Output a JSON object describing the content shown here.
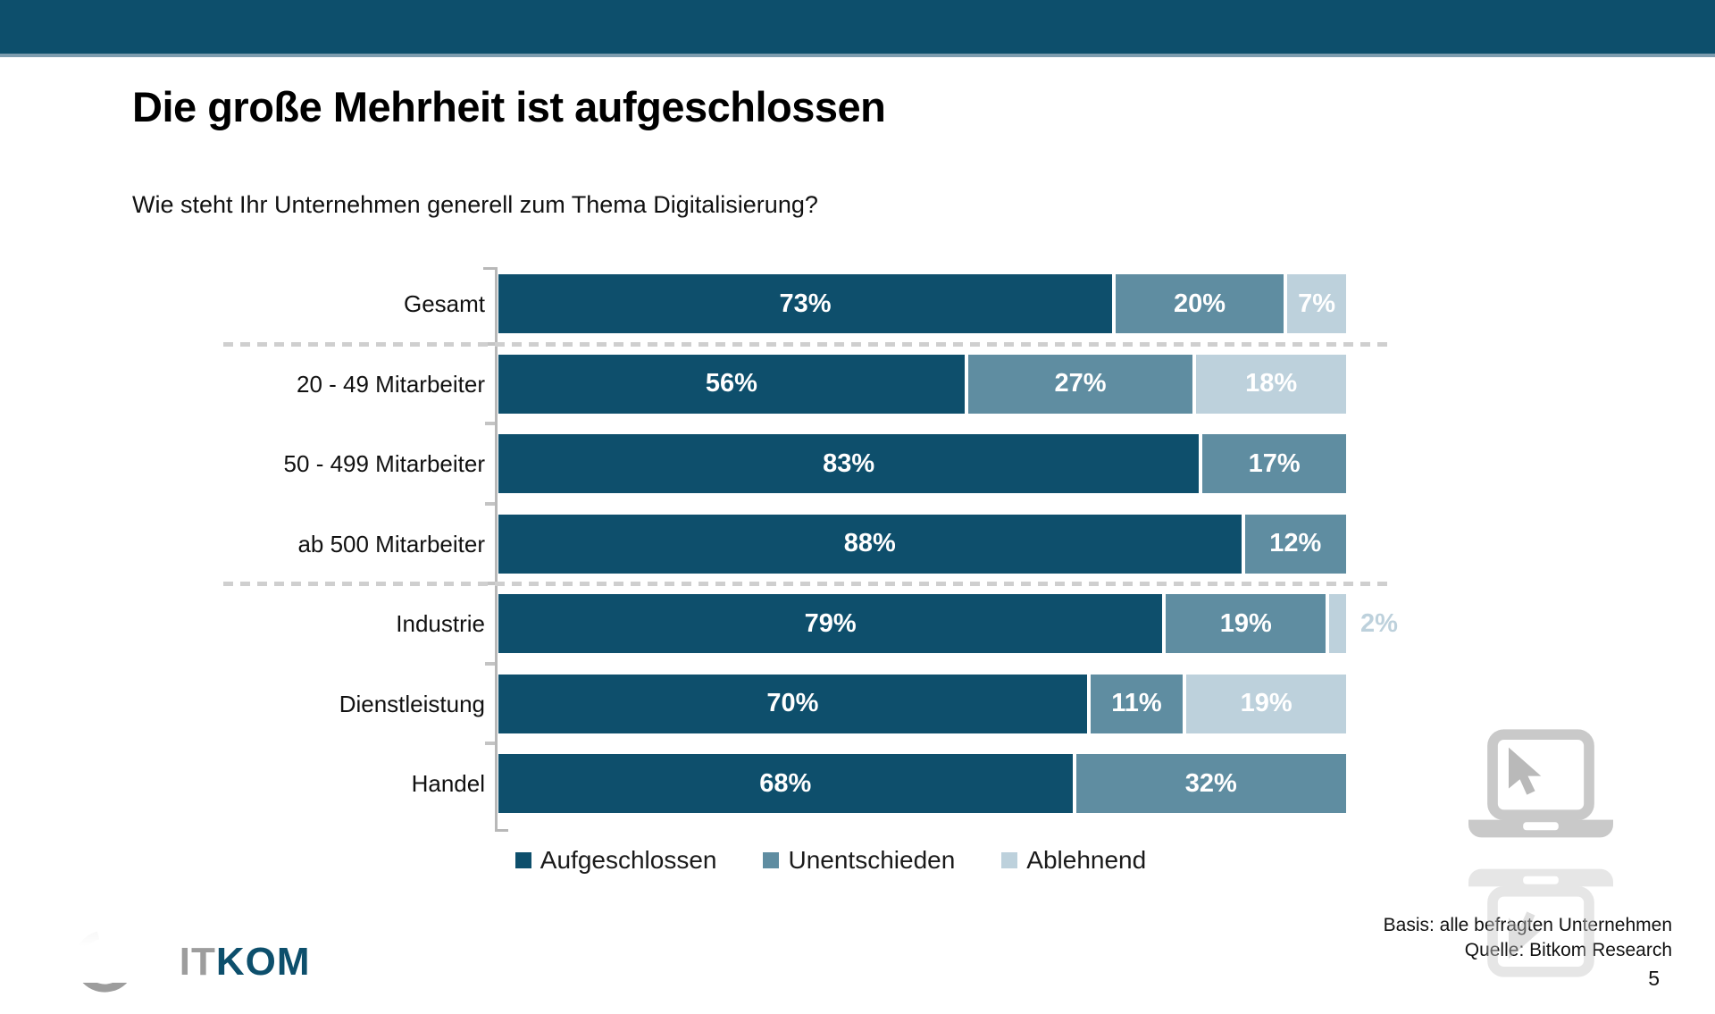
{
  "title": "Die große Mehrheit ist aufgeschlossen",
  "subtitle": "Wie steht Ihr Unternehmen generell zum Thema Digitalisierung?",
  "footer": {
    "basis": "Basis: alle befragten Unternehmen",
    "source": "Quelle: Bitkom Research",
    "page_number": "5"
  },
  "logo": {
    "bit": "BIT",
    "kom": "KOM"
  },
  "colors": {
    "header_bar": "#0d4f6c",
    "header_underline": "#7d9cae",
    "aufgeschlossen": "#0e4f6c",
    "unentschieden": "#5f8da1",
    "ablehnend": "#bdd1dc",
    "axis": "#b8b8b8",
    "separator": "#cfcfcf"
  },
  "chart_data": {
    "type": "bar",
    "orientation": "horizontal",
    "stacked": true,
    "categories": [
      "Gesamt",
      "20 - 49 Mitarbeiter",
      "50 - 499 Mitarbeiter",
      "ab 500 Mitarbeiter",
      "Industrie",
      "Dienstleistung",
      "Handel"
    ],
    "series": [
      {
        "name": "Aufgeschlossen",
        "color": "#0e4f6c",
        "values": [
          73,
          56,
          83,
          88,
          79,
          70,
          68
        ]
      },
      {
        "name": "Unentschieden",
        "color": "#5f8da1",
        "values": [
          20,
          27,
          17,
          12,
          19,
          11,
          32
        ]
      },
      {
        "name": "Ablehnend",
        "color": "#bdd1dc",
        "values": [
          7,
          18,
          0,
          0,
          2,
          19,
          0
        ]
      }
    ],
    "value_suffix": "%",
    "xlim": [
      0,
      100
    ],
    "legend_position": "bottom",
    "legend": [
      "Aufgeschlossen",
      "Unentschieden",
      "Ablehnend"
    ],
    "separator_after_rows": [
      0,
      3
    ],
    "outside_label_threshold": 5
  }
}
